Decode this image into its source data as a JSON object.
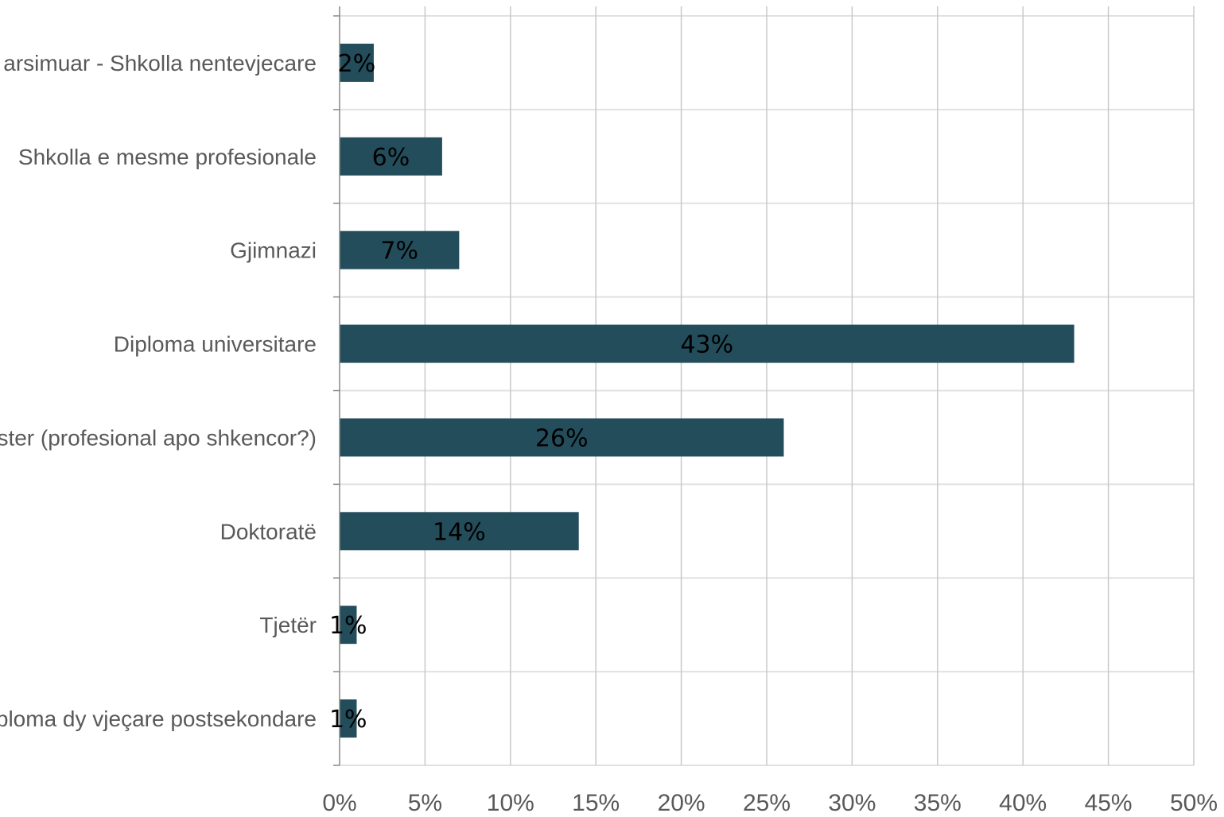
{
  "chart_data": {
    "type": "bar",
    "orientation": "horizontal",
    "categories": [
      "Të pashkolluar / të pa arsimuar - Shkolla nentevjecare",
      "Shkolla e mesme profesionale",
      "Gjimnazi",
      "Diploma universitare",
      "Master (profesional apo shkencor?)",
      "Doktoratë",
      "Tjetër",
      "Diploma dy vjeçare postsekondare"
    ],
    "values": [
      2,
      6,
      7,
      43,
      26,
      14,
      1,
      1
    ],
    "data_labels": [
      "2%",
      "6%",
      "7%",
      "43%",
      "26%",
      "14%",
      "1%",
      "1%"
    ],
    "xlim": [
      0,
      50
    ],
    "x_ticks": [
      0,
      5,
      10,
      15,
      20,
      25,
      30,
      35,
      40,
      45,
      50
    ],
    "x_tick_labels": [
      "0%",
      "5%",
      "10%",
      "15%",
      "20%",
      "25%",
      "30%",
      "35%",
      "40%",
      "45%",
      "50%"
    ],
    "title": "",
    "xlabel": "",
    "ylabel": "",
    "grid": true,
    "legend": "none"
  },
  "colors": {
    "bar": "#234d5b",
    "gridline": "#c8c8c8",
    "hgridline": "#e1e1e1",
    "axis": "#898989",
    "category_text": "#595959",
    "tick_text": "#595959",
    "data_label_text": "#000000"
  }
}
